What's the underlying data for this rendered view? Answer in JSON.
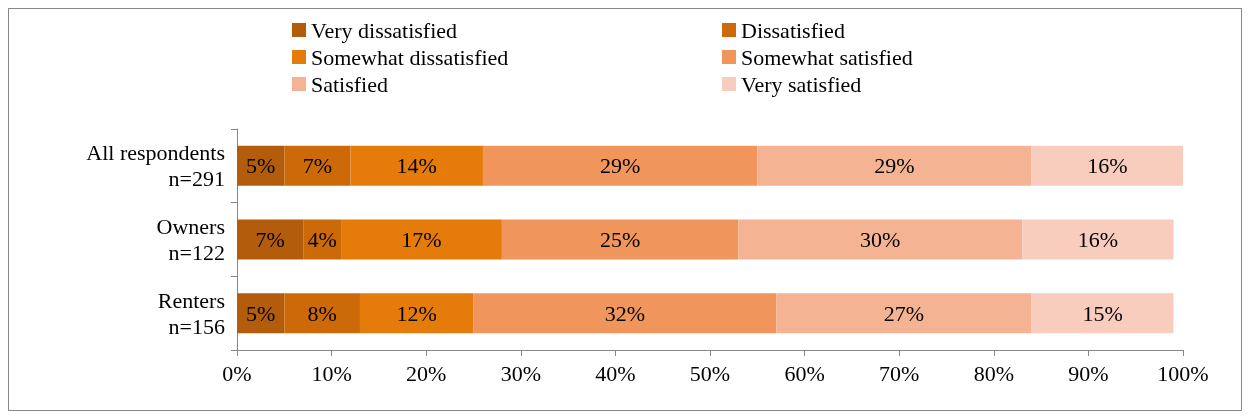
{
  "chart_data": {
    "type": "bar",
    "orientation": "horizontal",
    "stacked": true,
    "legend": "top",
    "categories": [
      "All respondents\nn=291",
      "Owners\nn=122",
      "Renters\nn=156"
    ],
    "series": [
      {
        "name": "Very dissatisfied",
        "color": "#b35c0c",
        "values": [
          5,
          7,
          5
        ],
        "value_labels": [
          "5%",
          "7%",
          "5%"
        ]
      },
      {
        "name": "Dissatisfied",
        "color": "#cc6a0a",
        "values": [
          7,
          4,
          8
        ],
        "value_labels": [
          "7%",
          "4%",
          "8%"
        ]
      },
      {
        "name": "Somewhat dissatisfied",
        "color": "#e47b0b",
        "values": [
          14,
          17,
          12
        ],
        "value_labels": [
          "14%",
          "17%",
          "12%"
        ]
      },
      {
        "name": "Somewhat satisfied",
        "color": "#f0965c",
        "values": [
          29,
          25,
          32
        ],
        "value_labels": [
          "29%",
          "25%",
          "32%"
        ]
      },
      {
        "name": "Satisfied",
        "color": "#f4b494",
        "values": [
          29,
          30,
          27
        ],
        "value_labels": [
          "29%",
          "30%",
          "27%"
        ]
      },
      {
        "name": "Very satisfied",
        "color": "#f8cdbd",
        "values": [
          16,
          16,
          15
        ],
        "value_labels": [
          "16%",
          "16%",
          "15%"
        ]
      }
    ],
    "xlim": [
      0,
      100
    ],
    "xticks": [
      {
        "value": 0,
        "label": "0%"
      },
      {
        "value": 10,
        "label": "10%"
      },
      {
        "value": 20,
        "label": "20%"
      },
      {
        "value": 30,
        "label": "30%"
      },
      {
        "value": 40,
        "label": "40%"
      },
      {
        "value": 50,
        "label": "50%"
      },
      {
        "value": 60,
        "label": "60%"
      },
      {
        "value": 70,
        "label": "70%"
      },
      {
        "value": 80,
        "label": "80%"
      },
      {
        "value": 90,
        "label": "90%"
      },
      {
        "value": 100,
        "label": "100%"
      }
    ],
    "grid": false
  }
}
